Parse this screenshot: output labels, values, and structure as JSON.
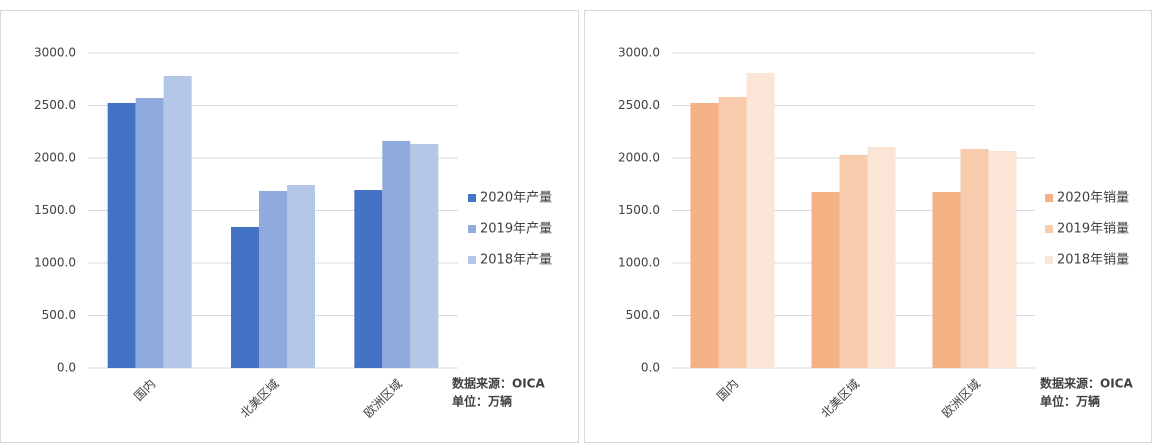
{
  "chart_data": [
    {
      "type": "bar",
      "categories": [
        "国内",
        "北美区域",
        "欧洲区域"
      ],
      "series": [
        {
          "name": "2020年产量",
          "color": "#4472c4",
          "values": [
            2524,
            1343,
            1695
          ]
        },
        {
          "name": "2019年产量",
          "color": "#8faadc",
          "values": [
            2571,
            1686,
            2162
          ]
        },
        {
          "name": "2018年产量",
          "color": "#b4c7e7",
          "values": [
            2781,
            1743,
            2133
          ]
        }
      ],
      "ylim": [
        0,
        3000
      ],
      "yticks": [
        {
          "value": 0,
          "label": "0.0"
        },
        {
          "value": 500,
          "label": "500.0"
        },
        {
          "value": 1000,
          "label": "1000.0"
        },
        {
          "value": 1500,
          "label": "1500.0"
        },
        {
          "value": 2000,
          "label": "2000.0"
        },
        {
          "value": 2500,
          "label": "2500.0"
        },
        {
          "value": 3000,
          "label": "3000.0"
        }
      ],
      "grid": true,
      "legend": "right",
      "notes": [
        "数据来源：OICA",
        "单位：万辆"
      ]
    },
    {
      "type": "bar",
      "categories": [
        "国内",
        "北美区域",
        "欧洲区域"
      ],
      "series": [
        {
          "name": "2020年销量",
          "color": "#f4b183",
          "values": [
            2524,
            1676,
            1676
          ]
        },
        {
          "name": "2019年销量",
          "color": "#f8cbad",
          "values": [
            2581,
            2029,
            2086
          ]
        },
        {
          "name": "2018年销量",
          "color": "#fbe5d6",
          "values": [
            2810,
            2105,
            2067
          ]
        }
      ],
      "ylim": [
        0,
        3000
      ],
      "yticks": [
        {
          "value": 0,
          "label": "0.0"
        },
        {
          "value": 500,
          "label": "500.0"
        },
        {
          "value": 1000,
          "label": "1000.0"
        },
        {
          "value": 1500,
          "label": "1500.0"
        },
        {
          "value": 2000,
          "label": "2000.0"
        },
        {
          "value": 2500,
          "label": "2500.0"
        },
        {
          "value": 3000,
          "label": "3000.0"
        }
      ],
      "grid": true,
      "legend": "right",
      "notes": [
        "数据来源：OICA",
        "单位：万辆"
      ]
    }
  ]
}
